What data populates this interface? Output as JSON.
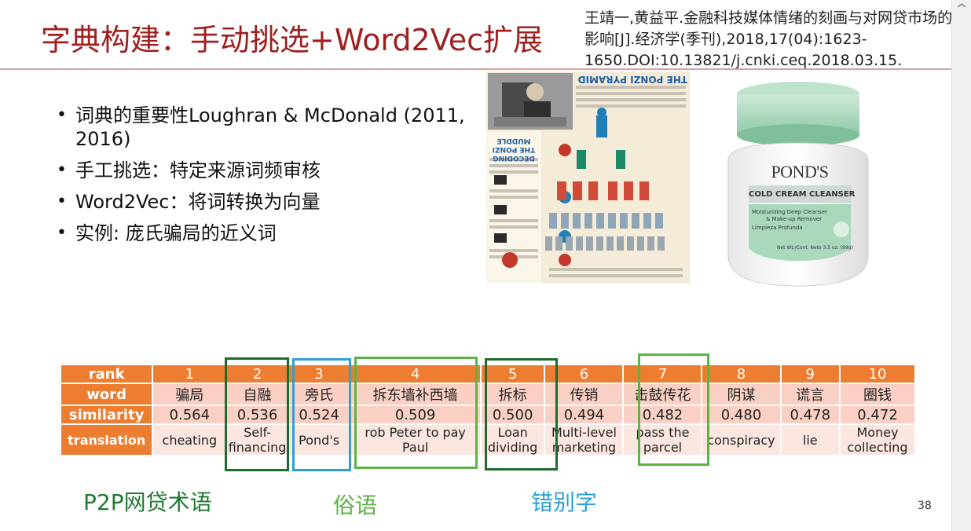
{
  "title": "字典构建：手动挑选+Word2Vec扩展",
  "citation": "王靖一,黄益平.金融科技媒体情绪的刻画与对网贷市场的影响[J].经济学(季刊),2018,17(04):1623-1650.DOI:10.13821/j.cnki.ceq.2018.03.15.",
  "bullets": [
    "词典的重要性Loughran & McDonald (2011, 2016)",
    "手工挑选：特定来源词频审核",
    "Word2Vec：将词转换为向量",
    "实例: 庞氏骗局的近义词"
  ],
  "ponzi_image": {
    "title": "THE PONZI PYRAMID",
    "side_title": "DECODING THE PONZI MUDDLE"
  },
  "ponds_image": {
    "brand": "POND'S",
    "product": "COLD CREAM CLEANSER",
    "line1": "Moisturizing Deep Cleanser",
    "line2": "& Make-up Remover",
    "line3": "Limpieza Profunda",
    "weight": "Net Wt./Cont. Neto 3.5 oz. (99g)"
  },
  "table": {
    "row_labels": {
      "rank": "rank",
      "word": "word",
      "similarity": "similarity",
      "translation": "translation"
    },
    "columns": [
      {
        "rank": "1",
        "word": "骗局",
        "similarity": "0.564",
        "translation": "cheating"
      },
      {
        "rank": "2",
        "word": "自融",
        "similarity": "0.536",
        "translation": "Self-financing"
      },
      {
        "rank": "3",
        "word": "旁氏",
        "similarity": "0.524",
        "translation": "Pond's"
      },
      {
        "rank": "4",
        "word": "拆东墙补西墙",
        "similarity": "0.509",
        "translation": "rob Peter to pay Paul"
      },
      {
        "rank": "5",
        "word": "拆标",
        "similarity": "0.500",
        "translation": "Loan dividing"
      },
      {
        "rank": "6",
        "word": "传销",
        "similarity": "0.494",
        "translation": "Multi-level marketing"
      },
      {
        "rank": "7",
        "word": "击鼓传花",
        "similarity": "0.482",
        "translation": "pass the parcel"
      },
      {
        "rank": "8",
        "word": "阴谋",
        "similarity": "0.480",
        "translation": "conspiracy"
      },
      {
        "rank": "9",
        "word": "谎言",
        "similarity": "0.478",
        "translation": "lie"
      },
      {
        "rank": "10",
        "word": "圈钱",
        "similarity": "0.472",
        "translation": "Money collecting"
      }
    ]
  },
  "legend": {
    "p2p": "P2P网贷术语",
    "slang": "俗语",
    "typo": "错别字"
  },
  "colors": {
    "title": "#a01f1f",
    "table_header": "#ed7d31",
    "p2p": "#1f6b2e",
    "slang": "#5bb443",
    "typo": "#2ca0d8"
  },
  "page_number": "38"
}
